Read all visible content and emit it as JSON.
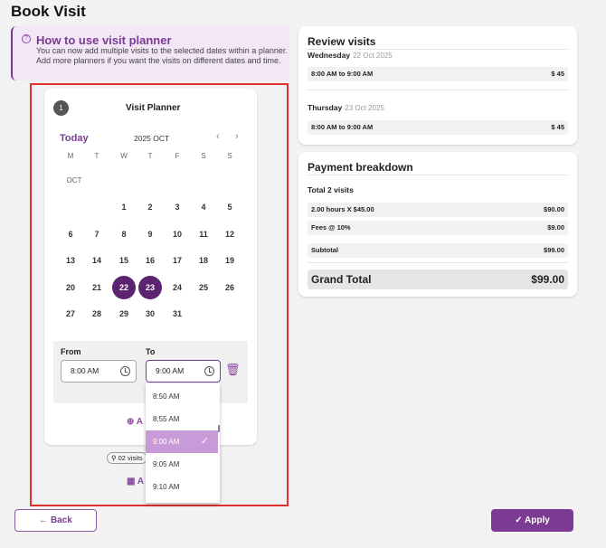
{
  "page_title": "Book Visit",
  "info": {
    "title": "How to use visit planner",
    "text": "You can now add multiple visits to the selected dates within a planner. Add more planners if you want the visits on different dates and time."
  },
  "planner": {
    "number": "1",
    "title": "Visit Planner",
    "today": "Today",
    "month": "2025 OCT",
    "month_label": "OCT",
    "weekdays": [
      "M",
      "T",
      "W",
      "T",
      "F",
      "S",
      "S"
    ],
    "weeks": [
      [
        null,
        null,
        1,
        2,
        3,
        4,
        5
      ],
      [
        6,
        7,
        8,
        9,
        10,
        11,
        12
      ],
      [
        13,
        14,
        15,
        16,
        17,
        18,
        19
      ],
      [
        20,
        21,
        22,
        23,
        24,
        25,
        26
      ],
      [
        27,
        28,
        29,
        30,
        31,
        null,
        null
      ]
    ],
    "selected": [
      22,
      23
    ],
    "from_label": "From",
    "to_label": "To",
    "from_value": "8:00 AM",
    "to_value": "9:00 AM",
    "time_options": [
      "8:50 AM",
      "8:55 AM",
      "9:00 AM",
      "9:05 AM",
      "9:10 AM"
    ],
    "selected_option": "9:00 AM",
    "add_visit_label": "A",
    "visits_chip": "02 visits",
    "add_planner_label": "A"
  },
  "review": {
    "title": "Review visits",
    "days": [
      {
        "day": "Wednesday",
        "date": "22 Oct 2025",
        "time": "8:00 AM to 9:00 AM",
        "price": "$ 45"
      },
      {
        "day": "Thursday",
        "date": "23 Oct 2025",
        "time": "8:00 AM to 9:00 AM",
        "price": "$ 45"
      }
    ]
  },
  "payment": {
    "title": "Payment breakdown",
    "total_visits": "Total 2 visits",
    "lines": [
      {
        "label": "2.00 hours X $45.00",
        "value": "$90.00"
      },
      {
        "label": "Fees @ 10%",
        "value": "$9.00"
      },
      {
        "label": "Subtotal",
        "value": "$99.00"
      }
    ],
    "grand_label": "Grand Total",
    "grand_value": "$99.00"
  },
  "buttons": {
    "back": "Back",
    "apply": "Apply"
  },
  "colors": {
    "accent": "#7b3a93",
    "selected_day": "#5b2370",
    "highlight": "#e03030"
  }
}
